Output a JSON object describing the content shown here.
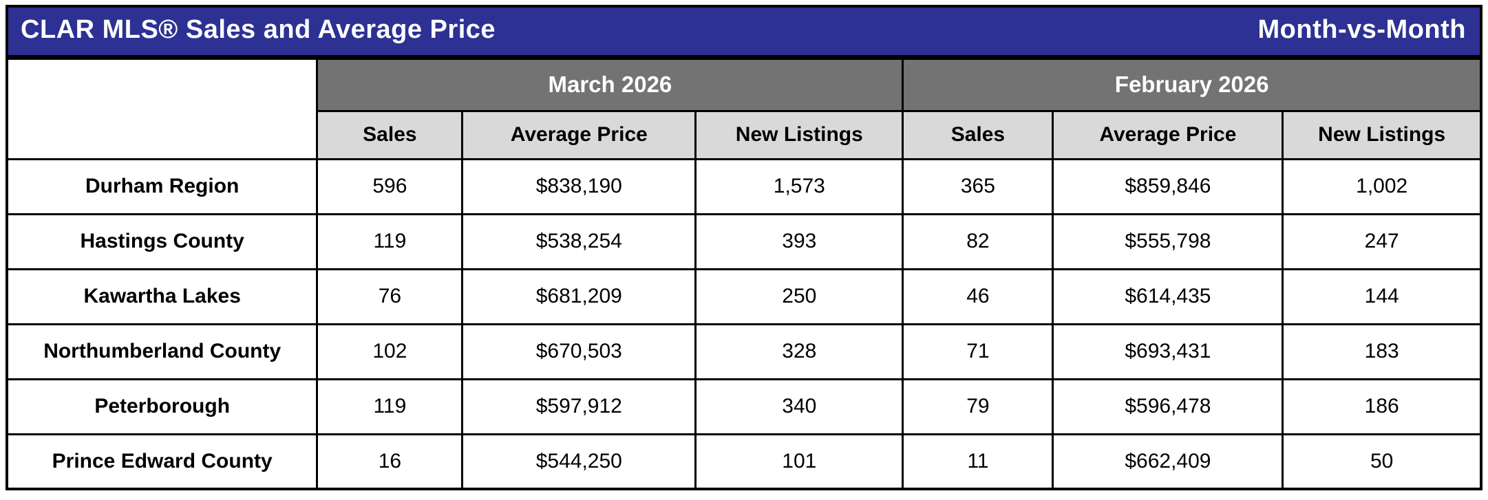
{
  "title_bar": {
    "title": "CLAR MLS® Sales and Average Price",
    "right_label": "Month-vs-Month"
  },
  "colors": {
    "title_bar_bg": "#2d3193",
    "title_text": "#ffffff",
    "group_header_bg": "#737373",
    "group_header_text": "#ffffff",
    "sub_header_bg": "#d9d9d9",
    "border": "#000000",
    "cell_bg": "#ffffff",
    "cell_text": "#000000"
  },
  "table": {
    "group_headers": [
      {
        "label": "March 2026"
      },
      {
        "label": "February 2026"
      }
    ],
    "sub_headers": [
      "Sales",
      "Average Price",
      "New Listings",
      "Sales",
      "Average Price",
      "New Listings"
    ],
    "rows": [
      {
        "region": "Durham Region",
        "cells": [
          "596",
          "$838,190",
          "1,573",
          "365",
          "$859,846",
          "1,002"
        ]
      },
      {
        "region": "Hastings County",
        "cells": [
          "119",
          "$538,254",
          "393",
          "82",
          "$555,798",
          "247"
        ]
      },
      {
        "region": "Kawartha Lakes",
        "cells": [
          "76",
          "$681,209",
          "250",
          "46",
          "$614,435",
          "144"
        ]
      },
      {
        "region": "Northumberland County",
        "cells": [
          "102",
          "$670,503",
          "328",
          "71",
          "$693,431",
          "183"
        ]
      },
      {
        "region": "Peterborough",
        "cells": [
          "119",
          "$597,912",
          "340",
          "79",
          "$596,478",
          "186"
        ]
      },
      {
        "region": "Prince Edward County",
        "cells": [
          "16",
          "$544,250",
          "101",
          "11",
          "$662,409",
          "50"
        ]
      }
    ]
  },
  "chart_data": {
    "type": "table",
    "title": "CLAR MLS® Sales and Average Price",
    "subtitle": "Month-vs-Month",
    "column_groups": [
      "March 2026",
      "February 2026"
    ],
    "columns": [
      "Region",
      "March 2026 Sales",
      "March 2026 Average Price",
      "March 2026 New Listings",
      "February 2026 Sales",
      "February 2026 Average Price",
      "February 2026 New Listings"
    ],
    "rows": [
      [
        "Durham Region",
        596,
        838190,
        1573,
        365,
        859846,
        1002
      ],
      [
        "Hastings County",
        119,
        538254,
        393,
        82,
        555798,
        247
      ],
      [
        "Kawartha Lakes",
        76,
        681209,
        250,
        46,
        614435,
        144
      ],
      [
        "Northumberland County",
        102,
        670503,
        328,
        71,
        693431,
        183
      ],
      [
        "Peterborough",
        119,
        597912,
        340,
        79,
        596478,
        186
      ],
      [
        "Prince Edward County",
        16,
        544250,
        101,
        11,
        662409,
        50
      ]
    ]
  }
}
